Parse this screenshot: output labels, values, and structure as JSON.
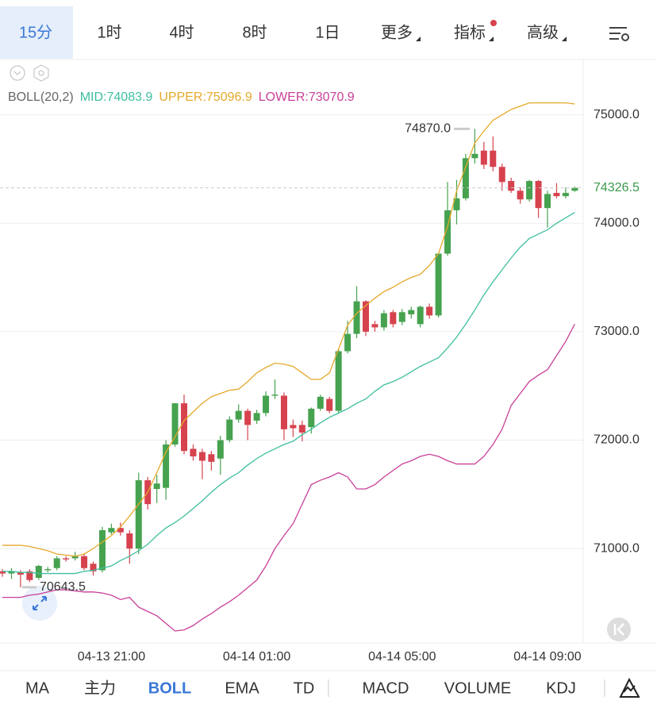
{
  "ui": {
    "top_tabs": [
      "15分",
      "1时",
      "4时",
      "8时",
      "1日",
      "更多",
      "指标",
      "高级"
    ],
    "bottom_tabs": [
      "MA",
      "主力",
      "BOLL",
      "EMA",
      "TD",
      "MACD",
      "VOLUME",
      "KDJ"
    ]
  },
  "chart_data": {
    "type": "candlestick",
    "indicator": "BOLL(20,2)",
    "categories": [
      null,
      null,
      null,
      null,
      null,
      null,
      null,
      null,
      null,
      null,
      null,
      null,
      "04-13 21:00",
      null,
      null,
      null,
      null,
      null,
      null,
      null,
      null,
      null,
      null,
      null,
      null,
      null,
      null,
      null,
      "04-14 01:00",
      null,
      null,
      null,
      null,
      null,
      null,
      null,
      null,
      null,
      null,
      null,
      null,
      null,
      null,
      null,
      "04-14 05:00",
      null,
      null,
      null,
      null,
      null,
      null,
      null,
      null,
      null,
      null,
      null,
      null,
      null,
      null,
      null,
      "04-14 09:00",
      null,
      null,
      null
    ],
    "open": [
      70790,
      70770,
      70780,
      70790,
      70730,
      70800,
      70820,
      70910,
      70910,
      70930,
      70860,
      70800,
      71150,
      71190,
      71140,
      71000,
      71630,
      71550,
      71560,
      71960,
      72340,
      71920,
      71890,
      71870,
      71830,
      72000,
      72190,
      72270,
      72180,
      72250,
      72410,
      72410,
      72140,
      72140,
      72120,
      72290,
      72380,
      72270,
      72820,
      72980,
      73280,
      73070,
      73040,
      73180,
      73090,
      73160,
      73070,
      73230,
      73150,
      73720,
      74120,
      74230,
      74600,
      74670,
      74670,
      74520,
      74390,
      74300,
      74220,
      74390,
      74140,
      74280,
      74250,
      74300
    ],
    "high": [
      70810,
      70820,
      70800,
      70810,
      70850,
      70830,
      70930,
      70930,
      70970,
      70950,
      70880,
      71200,
      71230,
      71240,
      71170,
      71700,
      71660,
      71680,
      72000,
      72340,
      72420,
      71960,
      71920,
      71900,
      72040,
      72220,
      72330,
      72290,
      72280,
      72450,
      72560,
      72440,
      72190,
      72180,
      72300,
      72420,
      72400,
      72840,
      73100,
      73420,
      73290,
      73100,
      73200,
      73200,
      73210,
      73230,
      73240,
      73260,
      73730,
      74380,
      74400,
      74640,
      74870,
      74750,
      74800,
      74550,
      74420,
      74330,
      74400,
      74400,
      74300,
      74370,
      74330,
      74340
    ],
    "low": [
      70740,
      70720,
      70643.5,
      70690,
      70710,
      70780,
      70800,
      70880,
      70890,
      70800,
      70750,
      70780,
      71130,
      71120,
      70860,
      70950,
      71360,
      71420,
      71450,
      71940,
      71870,
      71810,
      71640,
      71720,
      71680,
      71980,
      72160,
      72000,
      72150,
      72220,
      72380,
      72000,
      72030,
      71990,
      72060,
      72270,
      72250,
      72250,
      72800,
      72940,
      72960,
      73000,
      73010,
      73040,
      73060,
      73120,
      73040,
      73120,
      73130,
      73700,
      73990,
      74210,
      74550,
      74500,
      74480,
      74300,
      74280,
      74180,
      74200,
      74050,
      73960,
      74230,
      74230,
      74290
    ],
    "close": [
      70770,
      70790,
      70760,
      70710,
      70840,
      70810,
      70910,
      70900,
      70930,
      70820,
      70790,
      71170,
      71190,
      71150,
      71000,
      71630,
      71410,
      71600,
      71960,
      72340,
      71900,
      71850,
      71810,
      71800,
      72000,
      72190,
      72270,
      72140,
      72250,
      72410,
      72420,
      72100,
      72110,
      72070,
      72290,
      72400,
      72270,
      72820,
      72980,
      73280,
      73000,
      73040,
      73170,
      73070,
      73180,
      73200,
      73230,
      73150,
      73720,
      74120,
      74230,
      74600,
      74640,
      74540,
      74520,
      74380,
      74300,
      74220,
      74390,
      74140,
      74270,
      74250,
      74280,
      74326.5
    ],
    "up_color": "#46a24f",
    "down_color": "#d6424e",
    "series": [
      {
        "name": "MID:74083.9",
        "color": "#3dbf9f",
        "values": [
          70790,
          70790,
          70780,
          70780,
          70770,
          70770,
          70770,
          70770,
          70770,
          70790,
          70800,
          70820,
          70840,
          70890,
          70930,
          70980,
          71040,
          71120,
          71190,
          71240,
          71300,
          71370,
          71440,
          71520,
          71590,
          71650,
          71700,
          71770,
          71830,
          71880,
          71920,
          71960,
          71990,
          72050,
          72100,
          72160,
          72210,
          72250,
          72290,
          72340,
          72380,
          72450,
          72510,
          72540,
          72580,
          72630,
          72680,
          72720,
          72760,
          72850,
          72950,
          73070,
          73200,
          73340,
          73460,
          73570,
          73680,
          73780,
          73860,
          73900,
          73940,
          74000,
          74050,
          74100
        ]
      },
      {
        "name": "UPPER:75096.9",
        "color": "#e5a92b",
        "values": [
          71030,
          71030,
          71030,
          71020,
          71000,
          70980,
          70950,
          70940,
          70930,
          70950,
          71000,
          71060,
          71120,
          71200,
          71300,
          71410,
          71520,
          71700,
          71890,
          72030,
          72180,
          72260,
          72340,
          72400,
          72430,
          72460,
          72470,
          72540,
          72620,
          72670,
          72710,
          72700,
          72680,
          72620,
          72560,
          72560,
          72620,
          72840,
          73060,
          73170,
          73240,
          73310,
          73370,
          73410,
          73460,
          73500,
          73530,
          73610,
          73720,
          73970,
          74300,
          74520,
          74740,
          74850,
          74950,
          75000,
          75050,
          75080,
          75110,
          75110,
          75110,
          75110,
          75110,
          75100
        ]
      },
      {
        "name": "LOWER:73070.9",
        "color": "#c93f98",
        "values": [
          70550,
          70550,
          70550,
          70570,
          70580,
          70600,
          70620,
          70620,
          70610,
          70600,
          70600,
          70590,
          70570,
          70530,
          70550,
          70460,
          70420,
          70380,
          70310,
          70240,
          70250,
          70290,
          70350,
          70400,
          70460,
          70510,
          70570,
          70640,
          70710,
          70840,
          71000,
          71120,
          71230,
          71410,
          71590,
          71630,
          71660,
          71700,
          71660,
          71550,
          71550,
          71590,
          71660,
          71720,
          71780,
          71810,
          71850,
          71870,
          71850,
          71810,
          71780,
          71780,
          71780,
          71850,
          71960,
          72100,
          72320,
          72430,
          72540,
          72600,
          72650,
          72780,
          72910,
          73070
        ]
      }
    ],
    "ylim": [
      70130,
      75510
    ],
    "yticks": [
      {
        "value": 75000,
        "label": "75000.0"
      },
      {
        "value": 74000,
        "label": "74000.0"
      },
      {
        "value": 73000,
        "label": "73000.0"
      },
      {
        "value": 72000,
        "label": "72000.0"
      },
      {
        "value": 71000,
        "label": "71000.0"
      }
    ],
    "grid": true,
    "last_price": 74326.5,
    "annotations": [
      {
        "value": 74870,
        "label": "74870.0"
      },
      {
        "value": 70643.5,
        "label": "70643.5"
      }
    ]
  }
}
